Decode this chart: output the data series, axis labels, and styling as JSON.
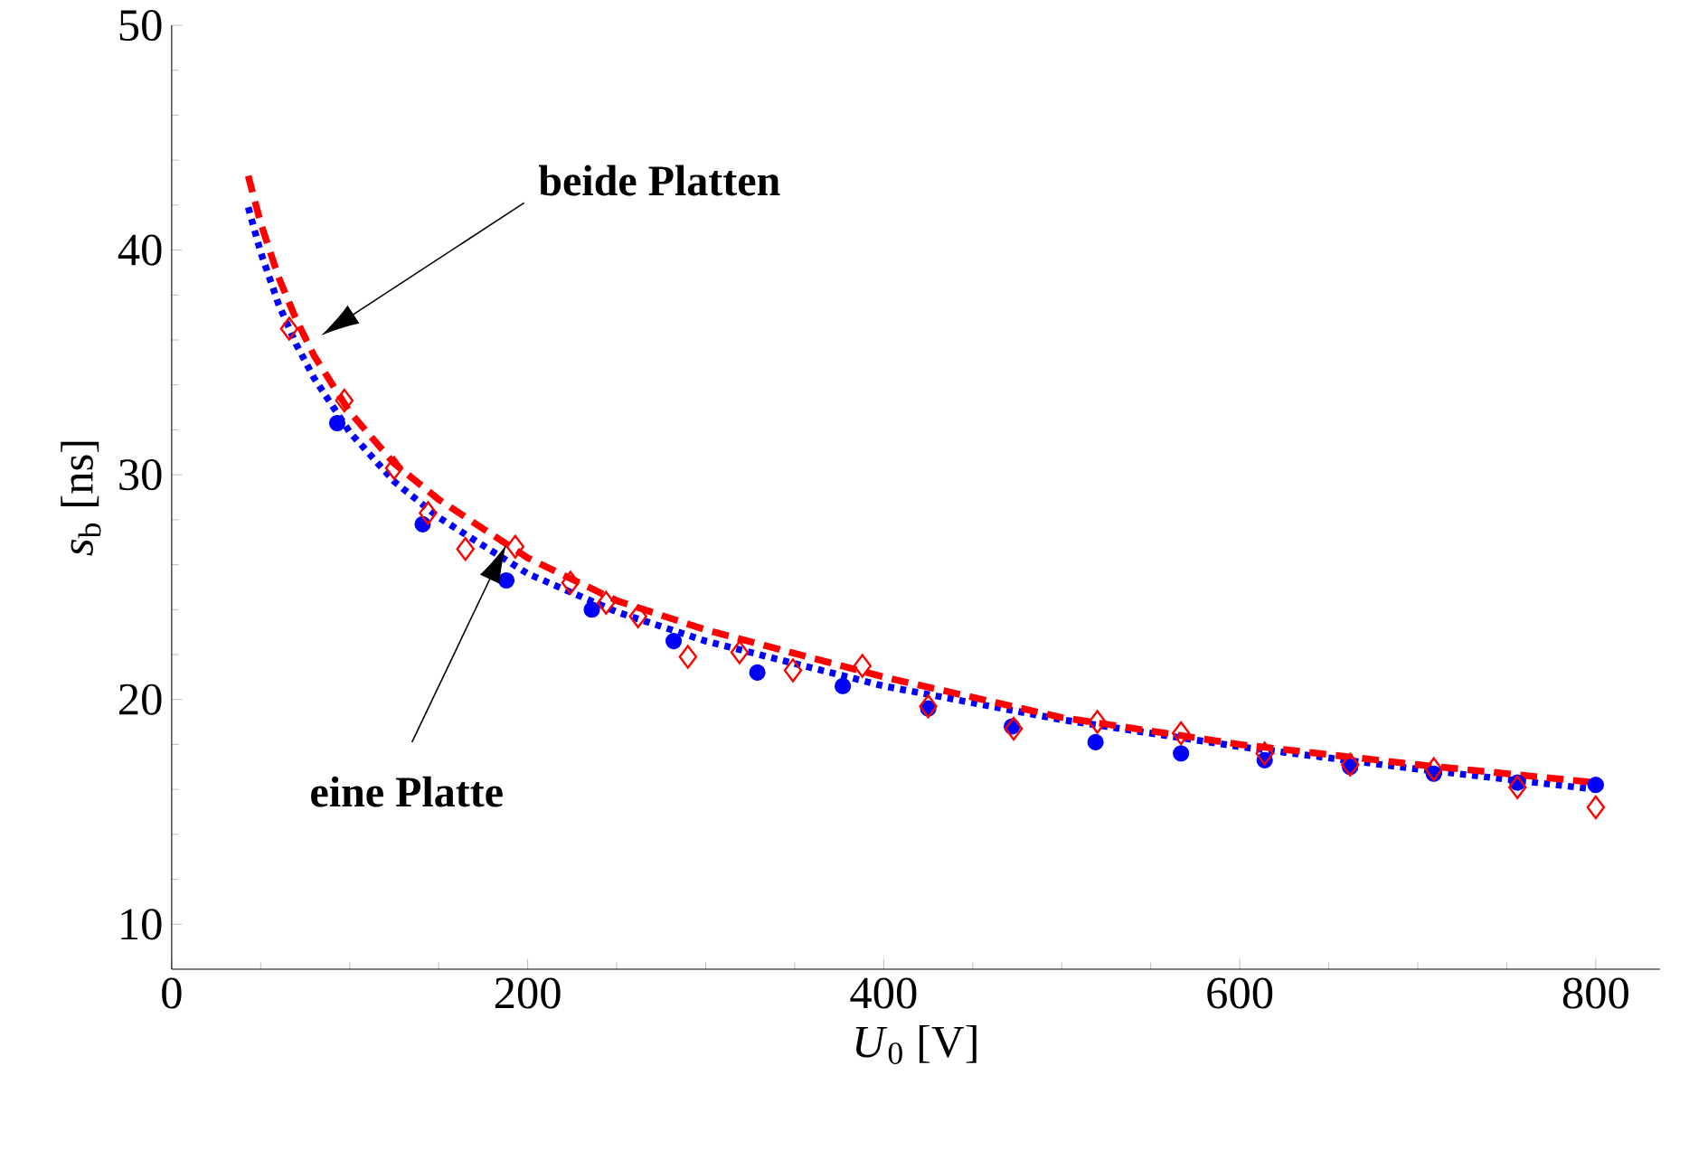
{
  "chart_data": {
    "type": "scatter",
    "xlabel": "*U*$_{0}$ [V]",
    "ylabel": "*s*$_{b}$ [ns]",
    "xlim": [
      0,
      836
    ],
    "ylim": [
      8,
      50
    ],
    "xticks": [
      0,
      200,
      400,
      600,
      800
    ],
    "yticks": [
      10,
      20,
      30,
      40,
      50
    ],
    "grid": false,
    "series": [
      {
        "type": "scatter",
        "color": "#0000ff",
        "marker": "circle",
        "x": [
          93,
          141,
          188,
          236,
          282,
          329,
          377,
          425,
          472,
          519,
          567,
          614,
          662,
          709,
          756,
          800
        ],
        "values": [
          32.3,
          27.8,
          25.3,
          24.0,
          22.6,
          21.2,
          20.6,
          19.6,
          18.8,
          18.1,
          17.6,
          17.3,
          17.0,
          16.7,
          16.3,
          16.2
        ]
      },
      {
        "type": "scatter",
        "color": "#ff0000",
        "marker": "diamond",
        "x": [
          66,
          97,
          125,
          144,
          165,
          193,
          224,
          244,
          262,
          290,
          319,
          349,
          388,
          425,
          473,
          520,
          567,
          614,
          662,
          709,
          756,
          800
        ],
        "values": [
          36.5,
          33.3,
          30.3,
          28.3,
          26.7,
          26.8,
          25.2,
          24.3,
          23.7,
          21.9,
          22.1,
          21.3,
          21.5,
          19.7,
          18.7,
          19.0,
          18.5,
          17.6,
          17.1,
          16.9,
          16.1,
          15.2
        ]
      },
      {
        "type": "line",
        "color": "#0000ff",
        "line_style": "dotted",
        "marker": "none",
        "x": [
          43,
          50,
          60,
          70,
          80,
          100,
          125,
          150,
          200,
          250,
          300,
          400,
          500,
          600,
          700,
          800
        ],
        "values": [
          41.9,
          39.9,
          37.6,
          35.8,
          34.3,
          31.9,
          29.7,
          28.1,
          25.6,
          23.9,
          22.6,
          20.6,
          19.1,
          17.9,
          16.9,
          16.0
        ]
      },
      {
        "type": "line",
        "color": "#ff0000",
        "line_style": "dashed",
        "marker": "none",
        "x": [
          43,
          50,
          60,
          70,
          80,
          100,
          125,
          150,
          200,
          250,
          300,
          400,
          500,
          600,
          700,
          800
        ],
        "values": [
          43.3,
          41.2,
          38.8,
          36.9,
          35.3,
          32.8,
          30.5,
          28.9,
          26.3,
          24.4,
          23.1,
          21.0,
          19.2,
          18.0,
          17.1,
          16.3
        ]
      }
    ],
    "annotations": [
      "beide Platten",
      "eine Platte"
    ]
  }
}
